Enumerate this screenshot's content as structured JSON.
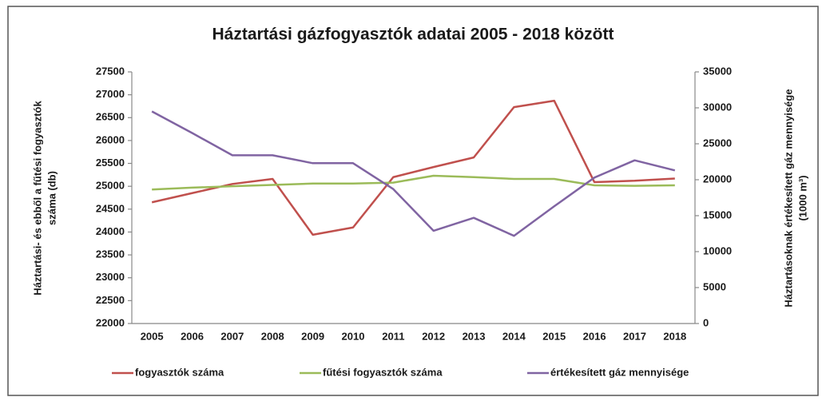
{
  "chart_data": {
    "type": "line",
    "title": "Háztartási gázfogyasztók  adatai 2005 - 2018 között",
    "y_label": [
      "Háztartási- és ebből a fűtési fogyasztók",
      "száma (db)"
    ],
    "y2_label": [
      "Háztartásoknak értékesített gáz mennyisége",
      "(1000 m³)"
    ],
    "categories": [
      "2005",
      "2006",
      "2007",
      "2008",
      "2009",
      "2010",
      "2011",
      "2012",
      "2013",
      "2014",
      "2015",
      "2016",
      "2017",
      "2018"
    ],
    "ylim": [
      22000,
      27500
    ],
    "yticks": [
      22000,
      22500,
      23000,
      23500,
      24000,
      24500,
      25000,
      25500,
      26000,
      26500,
      27000,
      27500
    ],
    "y2lim": [
      0,
      35000
    ],
    "y2ticks": [
      0,
      5000,
      10000,
      15000,
      20000,
      25000,
      30000,
      35000
    ],
    "legend": "bottom",
    "series": [
      {
        "name": "fogyasztók száma",
        "color": "#c0504d",
        "values": [
          24650,
          24850,
          25050,
          25160,
          23940,
          24100,
          25200,
          25420,
          25630,
          26730,
          26870,
          25090,
          25120,
          25170
        ]
      },
      {
        "name": "fűtési fogyasztók száma",
        "color": "#9bbb59",
        "values": [
          24930,
          24970,
          25000,
          25030,
          25060,
          25060,
          25080,
          25230,
          25200,
          25160,
          25160,
          25020,
          25010,
          25020
        ]
      },
      {
        "name": "értékesített gáz mennyisége",
        "color": "#8064a2",
        "axis": "y2",
        "values": [
          29500,
          26500,
          23400,
          23400,
          22300,
          22300,
          18700,
          12900,
          14700,
          12200,
          16300,
          20300,
          22700,
          21300
        ]
      }
    ]
  }
}
